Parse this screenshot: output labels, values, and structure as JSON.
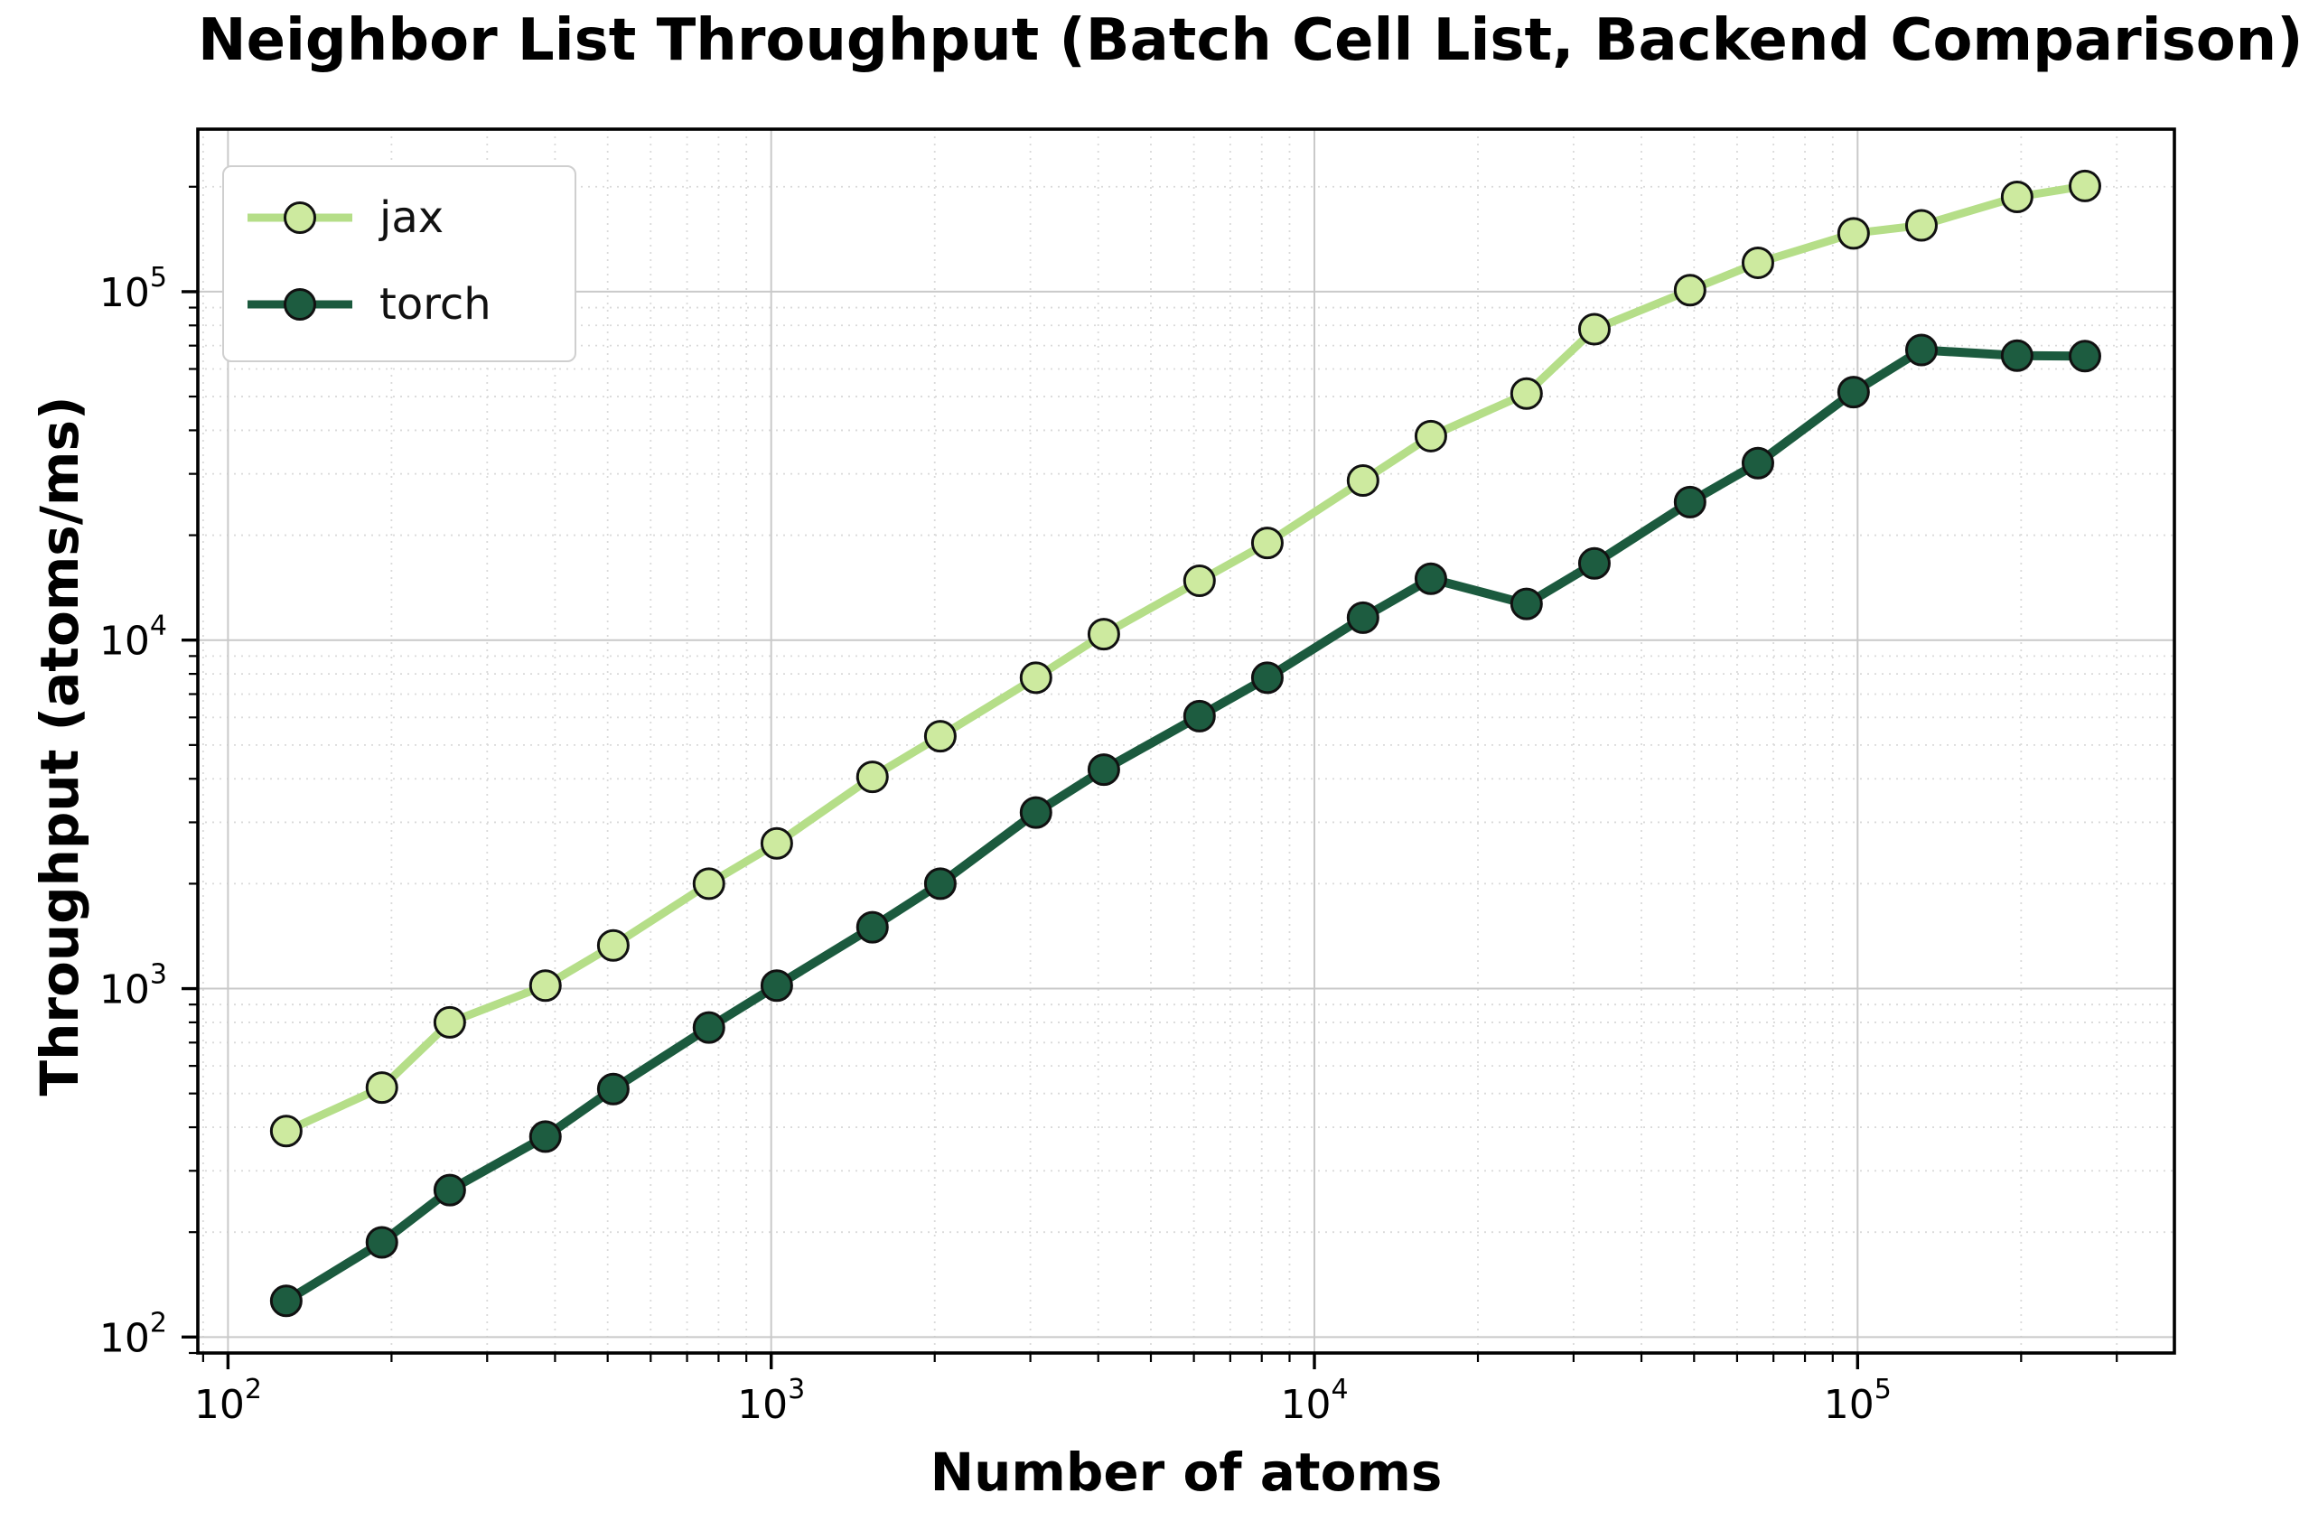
{
  "title": "Neighbor List Throughput (Batch Cell List, Backend Comparison)",
  "legend": {
    "items": [
      {
        "label": "jax"
      },
      {
        "label": "torch"
      }
    ]
  },
  "chart_data": {
    "type": "line",
    "title": "Neighbor List Throughput (Batch Cell List, Backend Comparison)",
    "xlabel": "Number of atoms",
    "ylabel": "Throughput (atoms/ms)",
    "x_scale": "log",
    "y_scale": "log",
    "xlim": [
      88,
      383000
    ],
    "ylim": [
      90,
      292600
    ],
    "grid": "major solid, minor dotted, both axes",
    "legend_position": "upper left",
    "x_tick_labels": [
      "10^2",
      "10^3",
      "10^4",
      "10^5"
    ],
    "y_tick_labels": [
      "10^2",
      "10^3",
      "10^4",
      "10^5"
    ],
    "x_tick_exponents": [
      2,
      3,
      4,
      5
    ],
    "y_tick_exponents": [
      2,
      3,
      4,
      5
    ],
    "x": [
      128,
      192,
      256,
      384,
      512,
      768,
      1024,
      1536,
      2048,
      3072,
      4096,
      6144,
      8192,
      12288,
      16384,
      24576,
      32768,
      49152,
      65536,
      98304,
      131072,
      196608,
      262144
    ],
    "series": [
      {
        "name": "jax",
        "line_color": "#b5de88",
        "marker_color": "#cdea9f",
        "marker_edge": "#111111",
        "values": [
          390,
          520,
          800,
          1020,
          1330,
          2000,
          2610,
          4050,
          5300,
          7800,
          10400,
          14800,
          19000,
          28700,
          38500,
          51000,
          78000,
          101000,
          121000,
          147000,
          155000,
          187000,
          201000
        ]
      },
      {
        "name": "torch",
        "line_color": "#1b5a3e",
        "marker_color": "#1d5c40",
        "marker_edge": "#111111",
        "values": [
          127,
          187,
          264,
          376,
          515,
          773,
          1020,
          1500,
          2000,
          3200,
          4250,
          6050,
          7800,
          11600,
          15000,
          12700,
          16600,
          24900,
          32200,
          51500,
          68000,
          65500,
          65300
        ]
      }
    ]
  }
}
